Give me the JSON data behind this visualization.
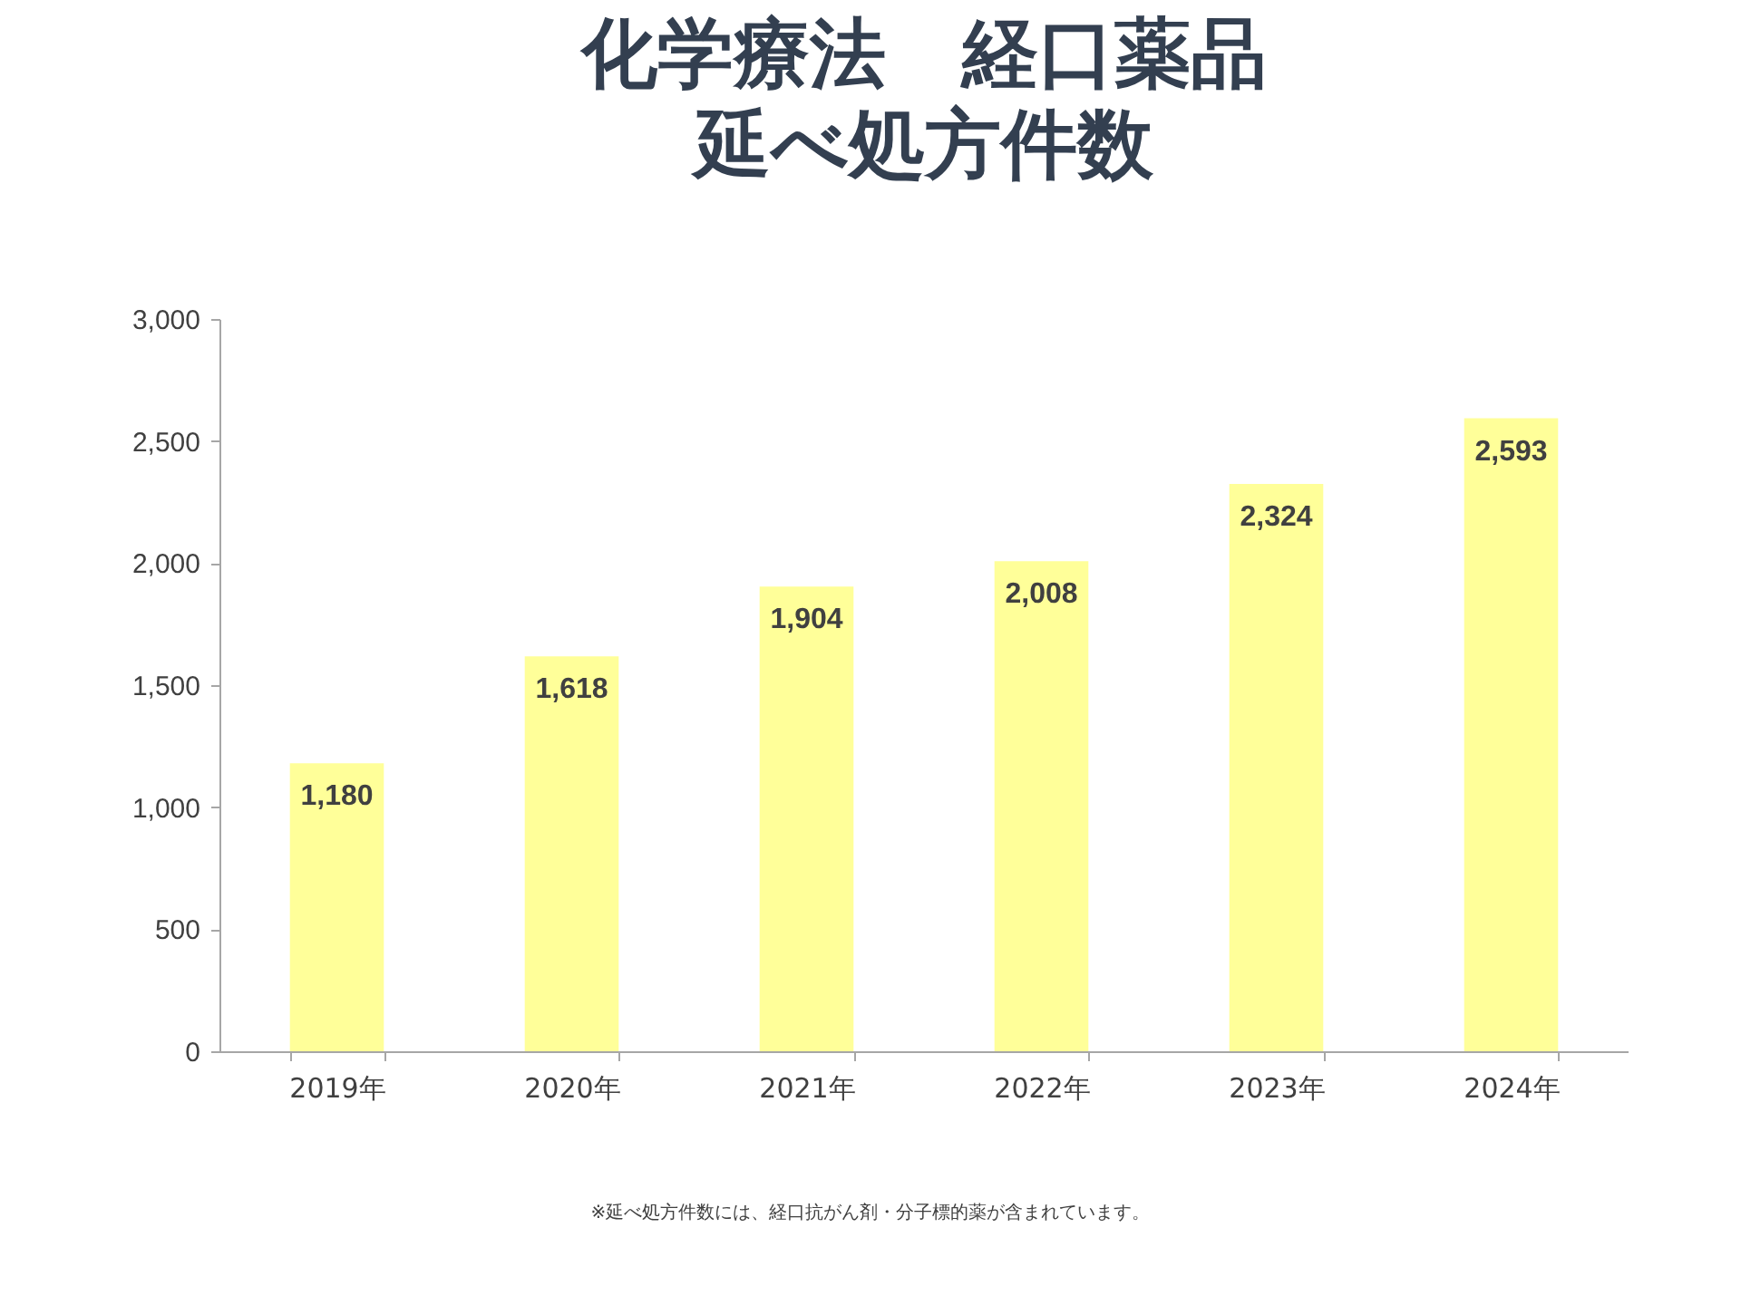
{
  "chart_data": {
    "type": "bar",
    "title": "化学療法　経口薬品",
    "subtitle": "延べ処方件数",
    "categories": [
      "2019年",
      "2020年",
      "2021年",
      "2022年",
      "2023年",
      "2024年"
    ],
    "values": [
      1180,
      1618,
      1904,
      2008,
      2324,
      2593
    ],
    "color": "#ffff99",
    "value_labels": [
      "1,180",
      "1,618",
      "1,904",
      "2,008",
      "2,324",
      "2,593"
    ],
    "ylim": [
      0,
      3000
    ],
    "yticks": [
      0,
      500,
      {
        "value": 1000,
        "label": "1,000"
      },
      {
        "value": 1500,
        "label": "1,500"
      },
      {
        "value": 2000,
        "label": "2,000"
      },
      {
        "value": 2500,
        "label": "2,500"
      },
      {
        "value": 3000,
        "label": "3,000"
      }
    ],
    "grid": false,
    "annotations": [
      "※延べ処方件数には、経口抗がん剤・分子標的薬が含まれています。"
    ]
  }
}
